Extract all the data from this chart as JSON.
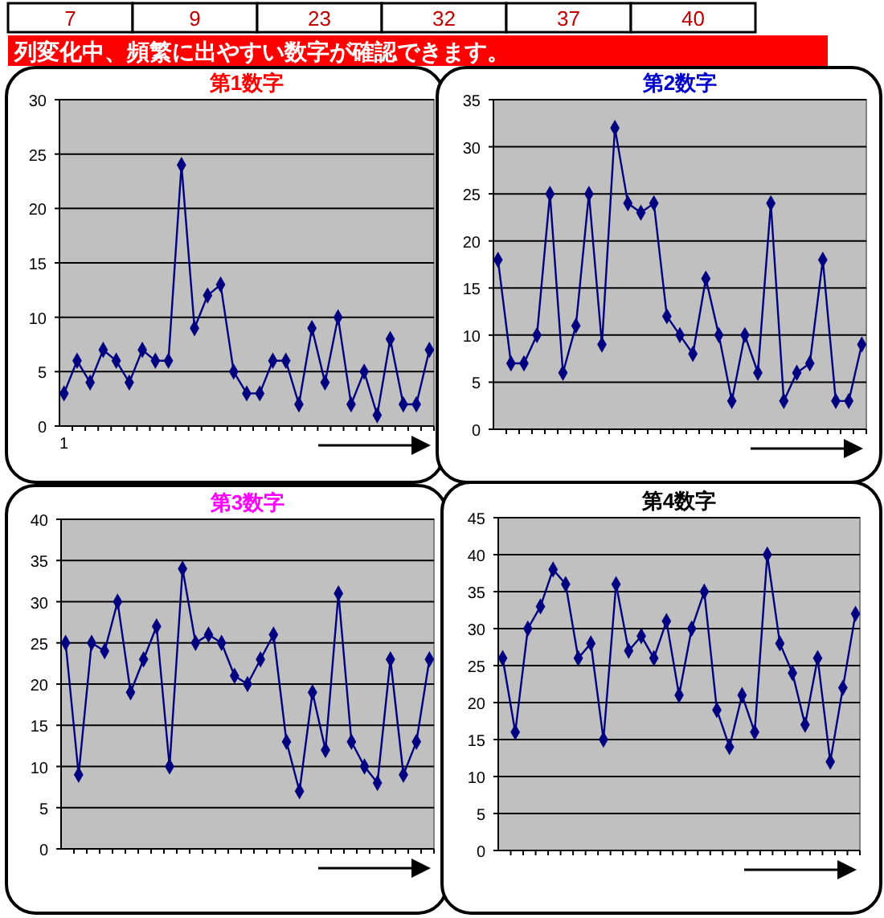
{
  "chart_data": [
    {
      "type": "other",
      "title": "列変化中、頻繁に出やすい数字が確認できます。",
      "annotations": [
        "7",
        "9",
        "23",
        "32",
        "37",
        "40"
      ]
    },
    {
      "type": "line",
      "title": "第1数字",
      "categories": [
        "1",
        null,
        null,
        null,
        null,
        null,
        null,
        null,
        null,
        null,
        null,
        null,
        null,
        null,
        null,
        null,
        null,
        null,
        null,
        null,
        null,
        null,
        null,
        null,
        null,
        null,
        null,
        null,
        null
      ],
      "series": [
        {
          "color": "#000080",
          "values": [
            3,
            6,
            4,
            7,
            6,
            4,
            7,
            6,
            6,
            24,
            9,
            12,
            13,
            5,
            3,
            3,
            6,
            6,
            2,
            9,
            4,
            10,
            2,
            5,
            1,
            8,
            2,
            2,
            7
          ]
        }
      ],
      "ylim": [
        0,
        30
      ],
      "yticks": [
        0,
        5,
        10,
        15,
        20,
        25,
        30
      ],
      "grid": "y",
      "marker": "diamond"
    },
    {
      "type": "line",
      "title": "第2数字",
      "categories": [
        null,
        null,
        null,
        null,
        null,
        null,
        null,
        null,
        null,
        null,
        null,
        null,
        null,
        null,
        null,
        null,
        null,
        null,
        null,
        null,
        null,
        null,
        null,
        null,
        null,
        null,
        null,
        null,
        null
      ],
      "series": [
        {
          "color": "#000080",
          "values": [
            18,
            7,
            7,
            10,
            25,
            6,
            11,
            25,
            9,
            32,
            24,
            23,
            24,
            12,
            10,
            8,
            16,
            10,
            3,
            10,
            6,
            24,
            3,
            6,
            7,
            18,
            3,
            3,
            9
          ]
        }
      ],
      "ylim": [
        0,
        35
      ],
      "yticks": [
        0,
        5,
        10,
        15,
        20,
        25,
        30,
        35
      ],
      "grid": "y",
      "marker": "diamond",
      "tick_labels": "y"
    },
    {
      "type": "line",
      "title": "第3数字",
      "categories": [
        null,
        null,
        null,
        null,
        null,
        null,
        null,
        null,
        null,
        null,
        null,
        null,
        null,
        null,
        null,
        null,
        null,
        null,
        null,
        null,
        null,
        null,
        null,
        null,
        null,
        null,
        null,
        null,
        null
      ],
      "series": [
        {
          "color": "#000080",
          "values": [
            25,
            9,
            25,
            24,
            30,
            19,
            23,
            27,
            10,
            34,
            25,
            26,
            25,
            21,
            20,
            23,
            26,
            13,
            7,
            19,
            12,
            31,
            13,
            10,
            8,
            23,
            9,
            13,
            23
          ]
        }
      ],
      "ylim": [
        0,
        40
      ],
      "yticks": [
        0,
        5,
        10,
        15,
        20,
        25,
        30,
        35,
        40
      ],
      "grid": "y",
      "marker": "diamond",
      "tick_labels": "y"
    },
    {
      "type": "line",
      "title": "第4数字",
      "categories": [
        null,
        null,
        null,
        null,
        null,
        null,
        null,
        null,
        null,
        null,
        null,
        null,
        null,
        null,
        null,
        null,
        null,
        null,
        null,
        null,
        null,
        null,
        null,
        null,
        null,
        null,
        null,
        null,
        null
      ],
      "series": [
        {
          "color": "#000080",
          "values": [
            26,
            16,
            30,
            33,
            38,
            36,
            26,
            28,
            15,
            36,
            27,
            29,
            26,
            31,
            21,
            30,
            35,
            19,
            14,
            21,
            16,
            40,
            28,
            24,
            17,
            26,
            12,
            22,
            32
          ]
        }
      ],
      "ylim": [
        0,
        45
      ],
      "yticks": [
        0,
        5,
        10,
        15,
        20,
        25,
        30,
        35,
        40,
        45
      ],
      "grid": "y",
      "marker": "diamond",
      "tick_labels": "y"
    }
  ]
}
